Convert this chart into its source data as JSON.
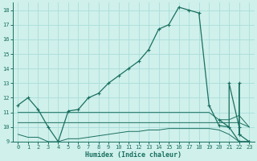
{
  "xlabel": "Humidex (Indice chaleur)",
  "xlim": [
    -0.5,
    23.5
  ],
  "ylim": [
    9,
    18.5
  ],
  "yticks": [
    9,
    10,
    11,
    12,
    13,
    14,
    15,
    16,
    17,
    18
  ],
  "xticks": [
    0,
    1,
    2,
    3,
    4,
    5,
    6,
    7,
    8,
    9,
    10,
    11,
    12,
    13,
    14,
    15,
    16,
    17,
    18,
    19,
    20,
    21,
    22,
    23
  ],
  "bg_color": "#cff0eb",
  "grid_color": "#aaddda",
  "line_color": "#1a7060",
  "main_x": [
    0,
    1,
    2,
    3,
    4,
    5,
    6,
    7,
    8,
    9,
    10,
    11,
    12,
    13,
    14,
    15,
    16,
    17,
    18,
    19,
    20,
    21,
    22,
    23
  ],
  "main_y": [
    11.5,
    12.0,
    11.2,
    10.0,
    9.0,
    11.1,
    11.2,
    12.0,
    12.3,
    13.0,
    13.5,
    14.0,
    14.5,
    15.3,
    16.7,
    17.0,
    18.2,
    18.0,
    17.8,
    11.5,
    10.1,
    10.0,
    9.0,
    9.0
  ],
  "flat1_x": [
    0,
    1,
    2,
    3,
    4,
    5,
    6,
    7,
    8,
    9,
    10,
    11,
    12,
    13,
    14,
    15,
    16,
    17,
    18,
    19,
    20,
    21,
    22,
    23
  ],
  "flat1_y": [
    11.0,
    11.0,
    11.0,
    11.0,
    11.0,
    11.0,
    11.0,
    11.0,
    11.0,
    11.0,
    11.0,
    11.0,
    11.0,
    11.0,
    11.0,
    11.0,
    11.0,
    11.0,
    11.0,
    11.0,
    10.5,
    10.5,
    10.8,
    10.0
  ],
  "flat2_x": [
    0,
    1,
    2,
    3,
    4,
    5,
    6,
    7,
    8,
    9,
    10,
    11,
    12,
    13,
    14,
    15,
    16,
    17,
    18,
    19,
    20,
    21,
    22,
    23
  ],
  "flat2_y": [
    10.3,
    10.3,
    10.3,
    10.3,
    10.3,
    10.3,
    10.3,
    10.3,
    10.3,
    10.3,
    10.3,
    10.3,
    10.3,
    10.3,
    10.3,
    10.3,
    10.3,
    10.3,
    10.3,
    10.3,
    10.3,
    10.3,
    10.3,
    10.0
  ],
  "flat3_x": [
    0,
    1,
    2,
    3,
    4,
    5,
    6,
    7,
    8,
    9,
    10,
    11,
    12,
    13,
    14,
    15,
    16,
    17,
    18,
    19,
    20,
    21,
    22,
    23
  ],
  "flat3_y": [
    9.5,
    9.3,
    9.3,
    9.0,
    9.0,
    9.2,
    9.2,
    9.3,
    9.4,
    9.5,
    9.6,
    9.7,
    9.7,
    9.8,
    9.8,
    9.9,
    9.9,
    9.9,
    9.9,
    9.9,
    9.8,
    9.5,
    9.0,
    9.0
  ],
  "spike_x": [
    20,
    21,
    21,
    22,
    22,
    22,
    22,
    23,
    23
  ],
  "spike_y": [
    10.5,
    10.0,
    13.0,
    10.0,
    9.5,
    13.0,
    9.5,
    9.0,
    9.0
  ]
}
